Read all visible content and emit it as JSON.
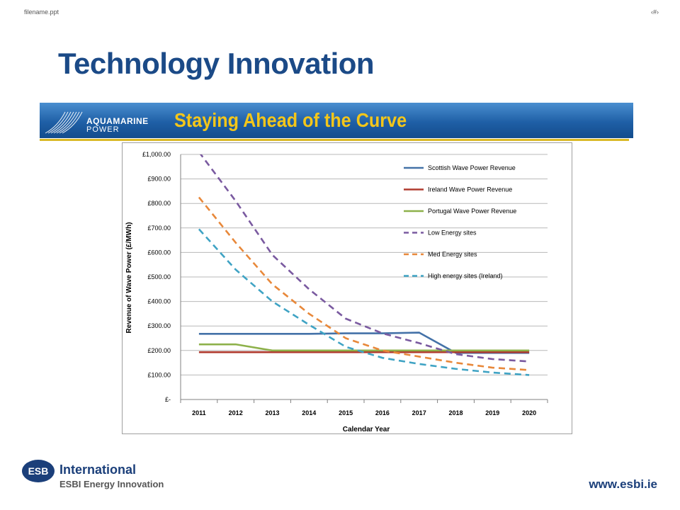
{
  "header": {
    "filename": "filename.ppt",
    "slide_number": "‹#›",
    "title": "Technology Innovation"
  },
  "banner": {
    "brand_line1": "AQUAMARINE",
    "brand_line2": "POWER",
    "tagline": "Staying Ahead of the Curve",
    "text_color": "#f3c61a",
    "bg_color": "#1f5fa6"
  },
  "footer": {
    "org": "International",
    "subtitle": "ESBI Energy Innovation",
    "website": "www.esbi.ie",
    "logo_text": "ESB"
  },
  "chart_data": {
    "type": "line",
    "xlabel": "Calendar Year",
    "ylabel": "Revenue of Wave Power (£/MWh)",
    "x": [
      "2011",
      "2012",
      "2013",
      "2014",
      "2015",
      "2016",
      "2017",
      "2018",
      "2019",
      "2020"
    ],
    "ylim": [
      0,
      1000
    ],
    "yticks": [
      0,
      100,
      200,
      300,
      400,
      500,
      600,
      700,
      800,
      900,
      1000
    ],
    "ytick_labels": [
      "£-",
      "£100.00",
      "£200.00",
      "£300.00",
      "£400.00",
      "£500.00",
      "£600.00",
      "£700.00",
      "£800.00",
      "£900.00",
      "£1,000.00"
    ],
    "grid": "horizontal",
    "legend_position": "top-right",
    "series": [
      {
        "name": "Scottish Wave Power Revenue",
        "color": "#4472a8",
        "style": "solid",
        "values": [
          268,
          268,
          268,
          268,
          270,
          270,
          273,
          190,
          190,
          190
        ]
      },
      {
        "name": "Ireland Wave Power Revenue",
        "color": "#b03a2e",
        "style": "solid",
        "values": [
          193,
          193,
          193,
          193,
          193,
          193,
          193,
          193,
          193,
          193
        ]
      },
      {
        "name": "Portugal Wave Power Revenue",
        "color": "#8db14a",
        "style": "solid",
        "values": [
          225,
          225,
          200,
          200,
          200,
          200,
          200,
          200,
          200,
          200
        ]
      },
      {
        "name": "Low Energy sites",
        "color": "#7a5aa0",
        "style": "dashed",
        "values": [
          1010,
          810,
          590,
          450,
          330,
          270,
          230,
          185,
          165,
          155
        ]
      },
      {
        "name": "Med Energy sites",
        "color": "#e8883a",
        "style": "dashed",
        "values": [
          825,
          640,
          470,
          350,
          250,
          200,
          175,
          150,
          130,
          120
        ]
      },
      {
        "name": "High energy sites (Ireland)",
        "color": "#3fa3c4",
        "style": "dashed",
        "values": [
          695,
          530,
          400,
          305,
          215,
          170,
          145,
          125,
          110,
          100
        ]
      }
    ]
  }
}
